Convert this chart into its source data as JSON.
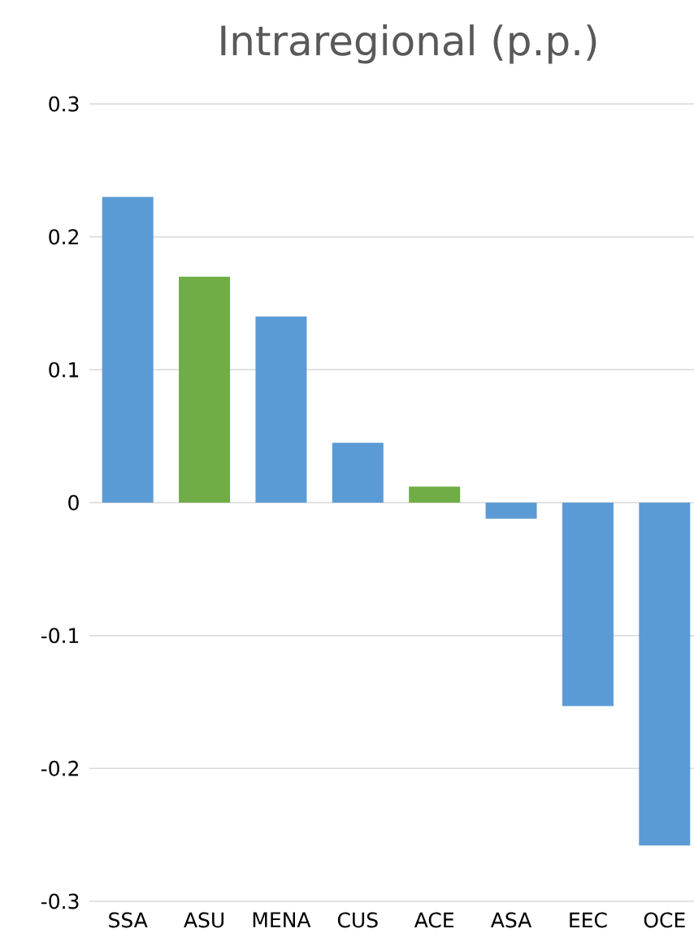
{
  "chart_data": {
    "type": "bar",
    "title": "Intraregional (p.p.)",
    "categories": [
      "SSA",
      "ASU",
      "MENA",
      "CUS",
      "ACE",
      "ASA",
      "EEC",
      "OCE"
    ],
    "values": [
      0.23,
      0.17,
      0.14,
      0.045,
      0.012,
      -0.012,
      -0.153,
      -0.258
    ],
    "colors": [
      "#5b9bd5",
      "#70ad47",
      "#5b9bd5",
      "#5b9bd5",
      "#70ad47",
      "#5b9bd5",
      "#5b9bd5",
      "#5b9bd5"
    ],
    "ylim": [
      -0.3,
      0.3
    ],
    "yticks": [
      -0.3,
      -0.2,
      -0.1,
      0,
      0.1,
      0.2,
      0.3
    ],
    "grid": "y"
  }
}
